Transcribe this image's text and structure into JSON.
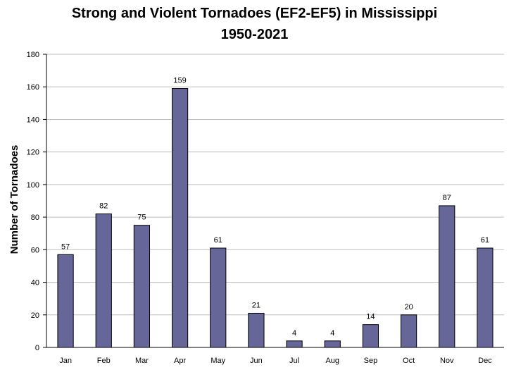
{
  "chart_data": {
    "type": "bar",
    "title": "Strong and Violent Tornadoes (EF2-EF5) in Mississippi",
    "subtitle": "1950-2021",
    "xlabel": "",
    "ylabel": "Number of Tornadoes",
    "categories": [
      "Jan",
      "Feb",
      "Mar",
      "Apr",
      "May",
      "Jun",
      "Jul",
      "Aug",
      "Sep",
      "Oct",
      "Nov",
      "Dec"
    ],
    "values": [
      57,
      82,
      75,
      159,
      61,
      21,
      4,
      4,
      14,
      20,
      87,
      61
    ],
    "ylim": [
      0,
      180
    ],
    "yticks": [
      0,
      20,
      40,
      60,
      80,
      100,
      120,
      140,
      160,
      180
    ],
    "grid": true,
    "legend": "none",
    "bar_color": "#666699"
  }
}
